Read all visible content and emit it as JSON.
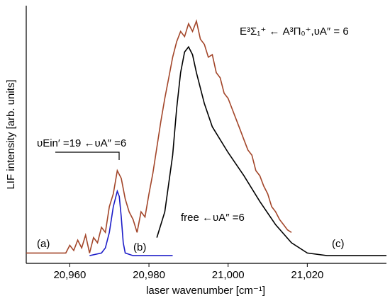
{
  "chart_data": {
    "type": "line",
    "x_label": "laser wavenumber [cm⁻¹]",
    "y_label": "LIF intensity [arb. units]",
    "xlim": [
      20949,
      21040
    ],
    "ylim": [
      0,
      1
    ],
    "xticks": [
      {
        "value": 20960,
        "label": "20,960"
      },
      {
        "value": 20980,
        "label": "20,980"
      },
      {
        "value": 21000,
        "label": "21,000"
      },
      {
        "value": 21020,
        "label": "21,020"
      }
    ],
    "annotations": [
      "E³Σ₁⁺ ← A³Π₀⁺,υA″ = 6",
      "υEin′ =19 ←υA″ =6",
      "free ←υA″ =6",
      "(a)",
      "(b)",
      "(c)"
    ],
    "series": [
      {
        "color": "#a3462a",
        "x": [
          20949,
          20959,
          20960,
          20961,
          20962,
          20963,
          20964,
          20965,
          20966,
          20967,
          20968,
          20969,
          20970,
          20971,
          20972,
          20973,
          20974,
          20975,
          20976,
          20977,
          20978,
          20979,
          20980,
          20981,
          20982,
          20983,
          20984,
          20985,
          20986,
          20987,
          20988,
          20989,
          20990,
          20991,
          20992,
          20993,
          20994,
          20995,
          20996,
          20997,
          20998,
          20999,
          21000,
          21001,
          21002,
          21003,
          21004,
          21005,
          21006,
          21007,
          21008,
          21009,
          21010,
          21011,
          21012,
          21013,
          21014,
          21015,
          21016
        ],
        "values": [
          0.04,
          0.04,
          0.07,
          0.05,
          0.09,
          0.06,
          0.11,
          0.04,
          0.1,
          0.08,
          0.14,
          0.12,
          0.22,
          0.27,
          0.36,
          0.33,
          0.25,
          0.2,
          0.17,
          0.12,
          0.2,
          0.18,
          0.27,
          0.35,
          0.45,
          0.55,
          0.64,
          0.72,
          0.8,
          0.86,
          0.9,
          0.88,
          0.93,
          0.9,
          0.94,
          0.87,
          0.85,
          0.8,
          0.81,
          0.74,
          0.72,
          0.66,
          0.64,
          0.6,
          0.56,
          0.52,
          0.48,
          0.44,
          0.42,
          0.36,
          0.34,
          0.3,
          0.27,
          0.22,
          0.2,
          0.17,
          0.15,
          0.13,
          0.12
        ]
      },
      {
        "color": "#1c1cc8",
        "x": [
          20965,
          20968,
          20969,
          20970,
          20971,
          20972,
          20972.5,
          20973,
          20973.5,
          20974,
          20976,
          20986
        ],
        "values": [
          0.03,
          0.04,
          0.06,
          0.12,
          0.22,
          0.28,
          0.26,
          0.18,
          0.08,
          0.04,
          0.03,
          0.03
        ]
      },
      {
        "color": "#000000",
        "x": [
          20982,
          20984,
          20986,
          20987,
          20988,
          20989,
          20990,
          20991,
          20992,
          20994,
          20996,
          21000,
          21004,
          21008,
          21012,
          21016,
          21020,
          21025,
          21035,
          21040
        ],
        "values": [
          0.1,
          0.2,
          0.42,
          0.6,
          0.74,
          0.82,
          0.84,
          0.81,
          0.74,
          0.62,
          0.53,
          0.43,
          0.34,
          0.24,
          0.15,
          0.08,
          0.04,
          0.03,
          0.03,
          0.03
        ]
      }
    ]
  }
}
